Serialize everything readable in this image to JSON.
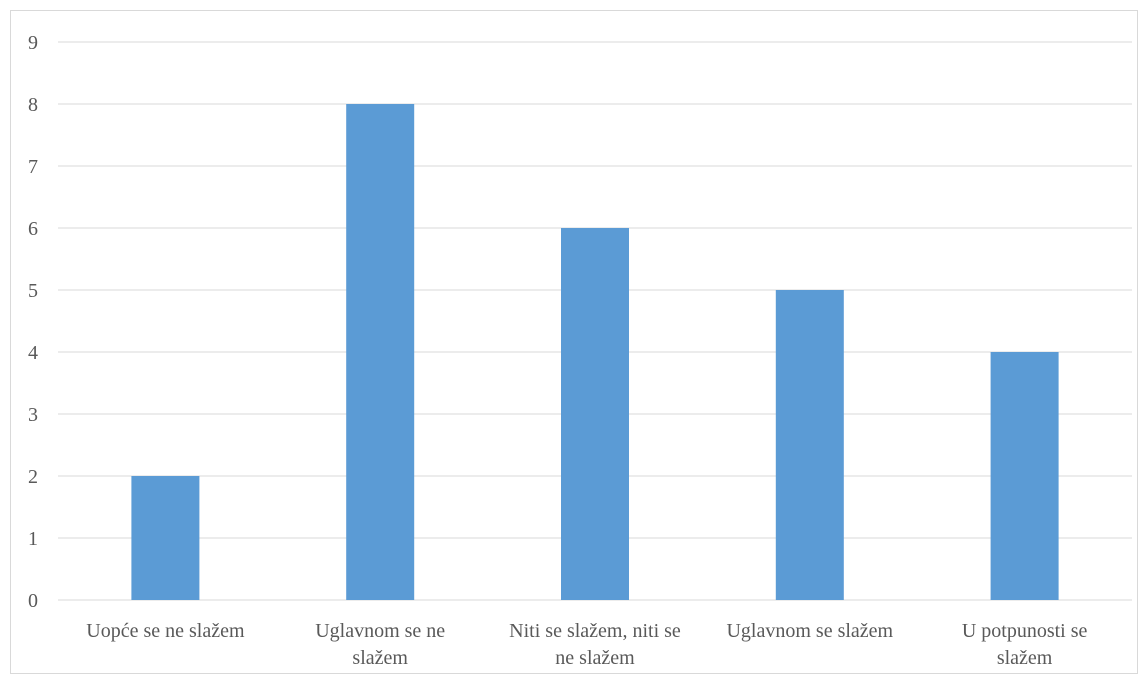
{
  "chart_data": {
    "type": "bar",
    "categories": [
      "Uopće se ne slažem",
      "Uglavnom se ne slažem",
      "Niti se slažem, niti se ne slažem",
      "Uglavnom se slažem",
      "U potpunosti se slažem"
    ],
    "category_lines": [
      [
        "Uopće se ne slažem"
      ],
      [
        "Uglavnom se ne",
        "slažem"
      ],
      [
        "Niti se slažem, niti se",
        "ne slažem"
      ],
      [
        "Uglavnom se slažem"
      ],
      [
        "U potpunosti se",
        "slažem"
      ]
    ],
    "values": [
      2,
      8,
      6,
      5,
      4
    ],
    "title": "",
    "xlabel": "",
    "ylabel": "",
    "ylim": [
      0,
      9
    ],
    "yticks": [
      "0",
      "1",
      "2",
      "3",
      "4",
      "5",
      "6",
      "7",
      "8",
      "9"
    ],
    "grid": true,
    "legend": "none",
    "colors": {
      "bar": "#5b9bd5",
      "grid": "#d9d9d9",
      "text": "#595959"
    }
  }
}
